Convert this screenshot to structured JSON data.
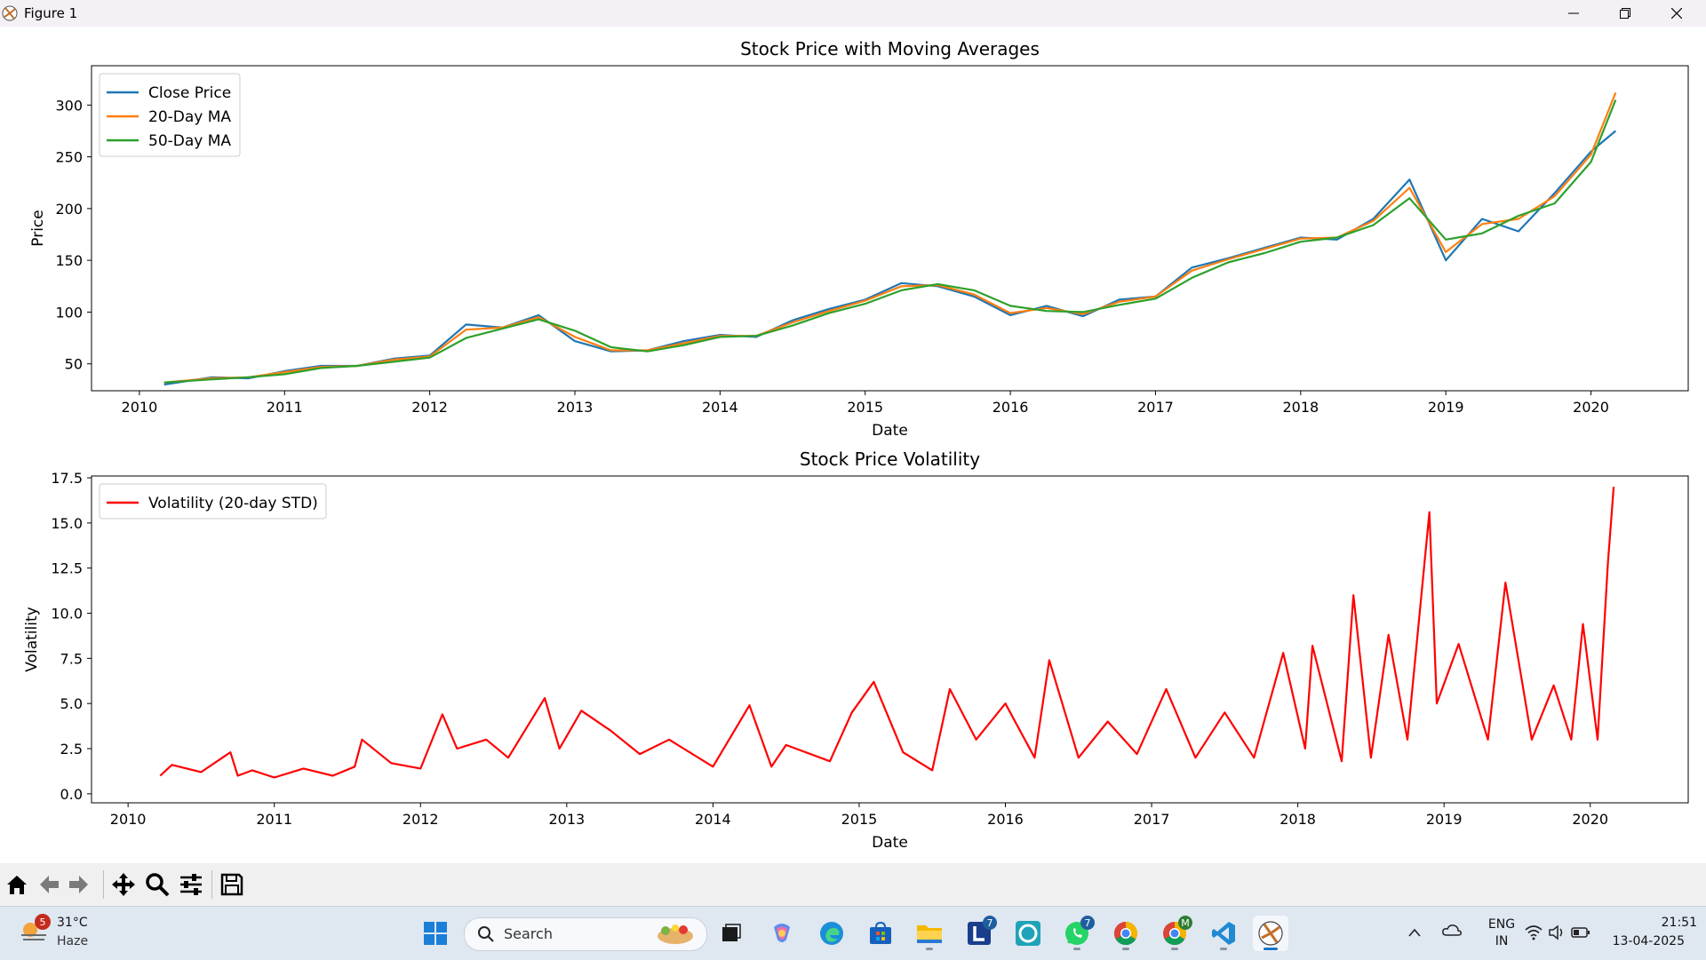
{
  "window": {
    "title": "Figure 1"
  },
  "chart_data": [
    {
      "type": "line",
      "title": "Stock Price with Moving Averages",
      "xlabel": "Date",
      "ylabel": "Price",
      "xlim": [
        2009.67,
        2020.67
      ],
      "ylim": [
        24,
        338
      ],
      "xticks": [
        "2010",
        "2011",
        "2012",
        "2013",
        "2014",
        "2015",
        "2016",
        "2017",
        "2018",
        "2019",
        "2020"
      ],
      "yticks": [
        50,
        100,
        150,
        200,
        250,
        300
      ],
      "grid": false,
      "legend": "top-left",
      "x": [
        2010.17,
        2010.5,
        2010.75,
        2011.0,
        2011.25,
        2011.5,
        2011.75,
        2012.0,
        2012.25,
        2012.5,
        2012.75,
        2013.0,
        2013.25,
        2013.5,
        2013.75,
        2014.0,
        2014.25,
        2014.5,
        2014.75,
        2015.0,
        2015.25,
        2015.5,
        2015.75,
        2016.0,
        2016.25,
        2016.5,
        2016.75,
        2017.0,
        2017.25,
        2017.5,
        2017.75,
        2018.0,
        2018.25,
        2018.5,
        2018.75,
        2019.0,
        2019.25,
        2019.5,
        2019.75,
        2020.0,
        2020.17
      ],
      "series": [
        {
          "name": "Close Price",
          "color": "#1f77b4",
          "values": [
            30,
            37,
            36,
            43,
            48,
            48,
            55,
            58,
            88,
            85,
            97,
            72,
            62,
            63,
            72,
            78,
            76,
            92,
            103,
            112,
            128,
            125,
            115,
            97,
            106,
            96,
            112,
            115,
            143,
            152,
            162,
            172,
            170,
            190,
            228,
            150,
            190,
            178,
            215,
            255,
            275
          ]
        },
        {
          "name": "20-Day MA",
          "color": "#ff7f0e",
          "values": [
            32,
            36,
            37,
            42,
            47,
            48,
            54,
            57,
            83,
            85,
            95,
            76,
            63,
            63,
            70,
            77,
            77,
            90,
            101,
            111,
            125,
            126,
            117,
            99,
            104,
            98,
            110,
            115,
            140,
            151,
            161,
            171,
            172,
            188,
            220,
            158,
            185,
            190,
            212,
            252,
            312
          ]
        },
        {
          "name": "50-Day MA",
          "color": "#2ca02c",
          "values": [
            32,
            35,
            37,
            40,
            46,
            48,
            52,
            56,
            75,
            84,
            93,
            82,
            66,
            62,
            68,
            76,
            77,
            87,
            99,
            108,
            121,
            127,
            121,
            106,
            101,
            100,
            107,
            113,
            133,
            148,
            157,
            168,
            172,
            184,
            210,
            170,
            176,
            193,
            205,
            245,
            305
          ]
        }
      ]
    },
    {
      "type": "line",
      "title": "Stock Price Volatility",
      "xlabel": "Date",
      "ylabel": "Volatility",
      "xlim": [
        2009.75,
        2020.67
      ],
      "ylim": [
        -0.5,
        17.6
      ],
      "xticks": [
        "2010",
        "2011",
        "2012",
        "2013",
        "2014",
        "2015",
        "2016",
        "2017",
        "2018",
        "2019",
        "2020"
      ],
      "yticks": [
        "0.0",
        "2.5",
        "5.0",
        "7.5",
        "10.0",
        "12.5",
        "15.0",
        "17.5"
      ],
      "grid": false,
      "legend": "top-left",
      "x": [
        2010.22,
        2010.3,
        2010.5,
        2010.7,
        2010.75,
        2010.85,
        2011.0,
        2011.2,
        2011.4,
        2011.55,
        2011.6,
        2011.8,
        2012.0,
        2012.15,
        2012.25,
        2012.45,
        2012.6,
        2012.85,
        2012.95,
        2013.1,
        2013.3,
        2013.5,
        2013.7,
        2014.0,
        2014.25,
        2014.4,
        2014.5,
        2014.8,
        2014.95,
        2015.1,
        2015.3,
        2015.5,
        2015.62,
        2015.8,
        2016.0,
        2016.2,
        2016.3,
        2016.5,
        2016.7,
        2016.9,
        2017.1,
        2017.3,
        2017.5,
        2017.7,
        2017.9,
        2018.05,
        2018.1,
        2018.3,
        2018.38,
        2018.5,
        2018.62,
        2018.75,
        2018.9,
        2018.95,
        2019.1,
        2019.3,
        2019.42,
        2019.6,
        2019.75,
        2019.87,
        2019.95,
        2020.05,
        2020.12,
        2020.16
      ],
      "series": [
        {
          "name": "Volatility (20-day STD)",
          "color": "#ff0000",
          "values": [
            1.0,
            1.6,
            1.2,
            2.3,
            1.0,
            1.3,
            0.9,
            1.4,
            1.0,
            1.5,
            3.0,
            1.7,
            1.4,
            4.4,
            2.5,
            3.0,
            2.0,
            5.3,
            2.5,
            4.6,
            3.5,
            2.2,
            3.0,
            1.5,
            4.9,
            1.5,
            2.7,
            1.8,
            4.5,
            6.2,
            2.3,
            1.3,
            5.8,
            3.0,
            5.0,
            2.0,
            7.4,
            2.0,
            4.0,
            2.2,
            5.8,
            2.0,
            4.5,
            2.0,
            7.8,
            2.5,
            8.2,
            1.8,
            11.0,
            2.0,
            8.8,
            3.0,
            15.6,
            5.0,
            8.3,
            3.0,
            11.7,
            3.0,
            6.0,
            3.0,
            9.4,
            3.0,
            12.7,
            17.0
          ]
        }
      ]
    }
  ],
  "toolbar": {
    "icons": [
      "home-icon",
      "back-arrow-icon",
      "forward-arrow-icon",
      "pan-icon",
      "zoom-icon",
      "configure-subplots-icon",
      "save-icon"
    ]
  },
  "taskbar": {
    "weather_temp": "31°C",
    "weather_desc": "Haze",
    "weather_badge": "5",
    "search_label": "Search",
    "badge_l": "7",
    "badge_whatsapp": "7",
    "badge_chrome_profile": "M",
    "lang_1": "ENG",
    "lang_2": "IN",
    "time": "21:51",
    "date": "13-04-2025"
  }
}
